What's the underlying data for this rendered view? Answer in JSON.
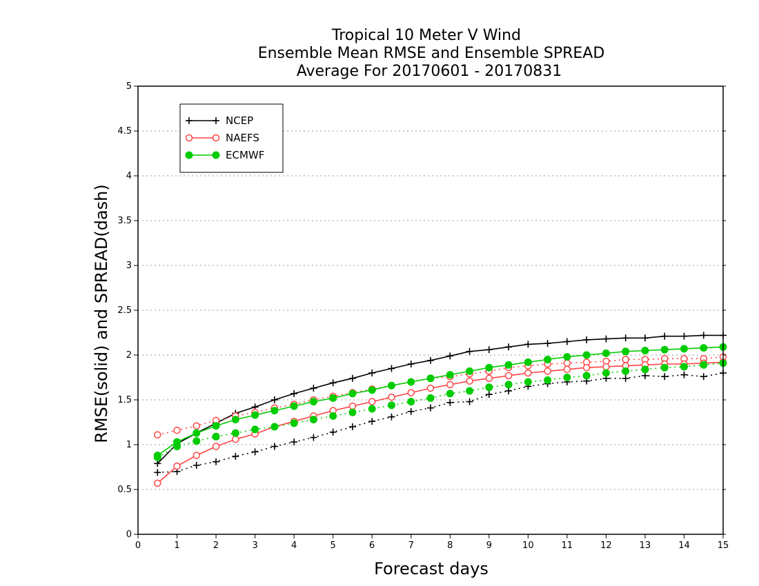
{
  "chart_data": {
    "type": "line",
    "title": [
      "Tropical 10 Meter V Wind",
      "Ensemble Mean RMSE and Ensemble SPREAD",
      "Average For 20170601 - 20170831"
    ],
    "xlabel": "Forecast days",
    "ylabel": "RMSE(solid) and SPREAD(dash)",
    "xlim": [
      0,
      15
    ],
    "ylim": [
      0,
      5
    ],
    "xticks": [
      "0",
      "1",
      "2",
      "3",
      "4",
      "5",
      "6",
      "7",
      "8",
      "9",
      "10",
      "11",
      "12",
      "13",
      "14",
      "15"
    ],
    "yticks": [
      "0",
      "0.5",
      "1",
      "1.5",
      "2",
      "2.5",
      "3",
      "3.5",
      "4",
      "4.5",
      "5"
    ],
    "grid": "horizontal dotted",
    "legend_position": "top-left",
    "x": [
      0.5,
      1,
      1.5,
      2,
      2.5,
      3,
      3.5,
      4,
      4.5,
      5,
      5.5,
      6,
      6.5,
      7,
      7.5,
      8,
      8.5,
      9,
      9.5,
      10,
      10.5,
      11,
      11.5,
      12,
      12.5,
      13,
      13.5,
      14,
      14.5,
      15
    ],
    "series": [
      {
        "name": "NCEP",
        "color": "#000000",
        "marker": "plus",
        "rmse": [
          0.79,
          1.01,
          1.13,
          1.24,
          1.35,
          1.42,
          1.5,
          1.57,
          1.63,
          1.69,
          1.74,
          1.8,
          1.85,
          1.9,
          1.94,
          1.99,
          2.04,
          2.06,
          2.09,
          2.12,
          2.13,
          2.15,
          2.17,
          2.18,
          2.19,
          2.19,
          2.21,
          2.21,
          2.22,
          2.22
        ],
        "spread": [
          0.69,
          0.7,
          0.77,
          0.81,
          0.87,
          0.92,
          0.98,
          1.03,
          1.08,
          1.14,
          1.2,
          1.26,
          1.31,
          1.37,
          1.41,
          1.47,
          1.48,
          1.56,
          1.6,
          1.65,
          1.68,
          1.7,
          1.71,
          1.74,
          1.74,
          1.77,
          1.76,
          1.78,
          1.76,
          1.8
        ]
      },
      {
        "name": "NAEFS",
        "color": "#ff4444",
        "marker": "open-circle",
        "rmse": [
          0.57,
          0.76,
          0.88,
          0.98,
          1.06,
          1.12,
          1.2,
          1.26,
          1.32,
          1.38,
          1.43,
          1.48,
          1.53,
          1.58,
          1.63,
          1.67,
          1.71,
          1.74,
          1.77,
          1.8,
          1.82,
          1.84,
          1.86,
          1.87,
          1.88,
          1.89,
          1.9,
          1.9,
          1.91,
          1.92
        ],
        "spread": [
          1.11,
          1.16,
          1.21,
          1.27,
          1.32,
          1.36,
          1.41,
          1.45,
          1.5,
          1.54,
          1.58,
          1.62,
          1.66,
          1.7,
          1.74,
          1.76,
          1.79,
          1.82,
          1.86,
          1.88,
          1.9,
          1.91,
          1.92,
          1.93,
          1.95,
          1.95,
          1.96,
          1.96,
          1.96,
          1.98
        ]
      },
      {
        "name": "ECMWF",
        "color": "#00cc00",
        "marker": "filled-circle",
        "rmse": [
          0.88,
          1.03,
          1.13,
          1.21,
          1.28,
          1.33,
          1.38,
          1.43,
          1.48,
          1.52,
          1.57,
          1.61,
          1.66,
          1.7,
          1.74,
          1.78,
          1.82,
          1.86,
          1.89,
          1.92,
          1.95,
          1.98,
          2,
          2.02,
          2.04,
          2.05,
          2.06,
          2.07,
          2.08,
          2.09
        ],
        "spread": [
          0.86,
          0.98,
          1.04,
          1.09,
          1.13,
          1.17,
          1.2,
          1.24,
          1.28,
          1.32,
          1.36,
          1.4,
          1.44,
          1.48,
          1.52,
          1.57,
          1.6,
          1.64,
          1.67,
          1.7,
          1.72,
          1.75,
          1.77,
          1.8,
          1.82,
          1.84,
          1.86,
          1.87,
          1.89,
          1.91
        ]
      }
    ]
  }
}
